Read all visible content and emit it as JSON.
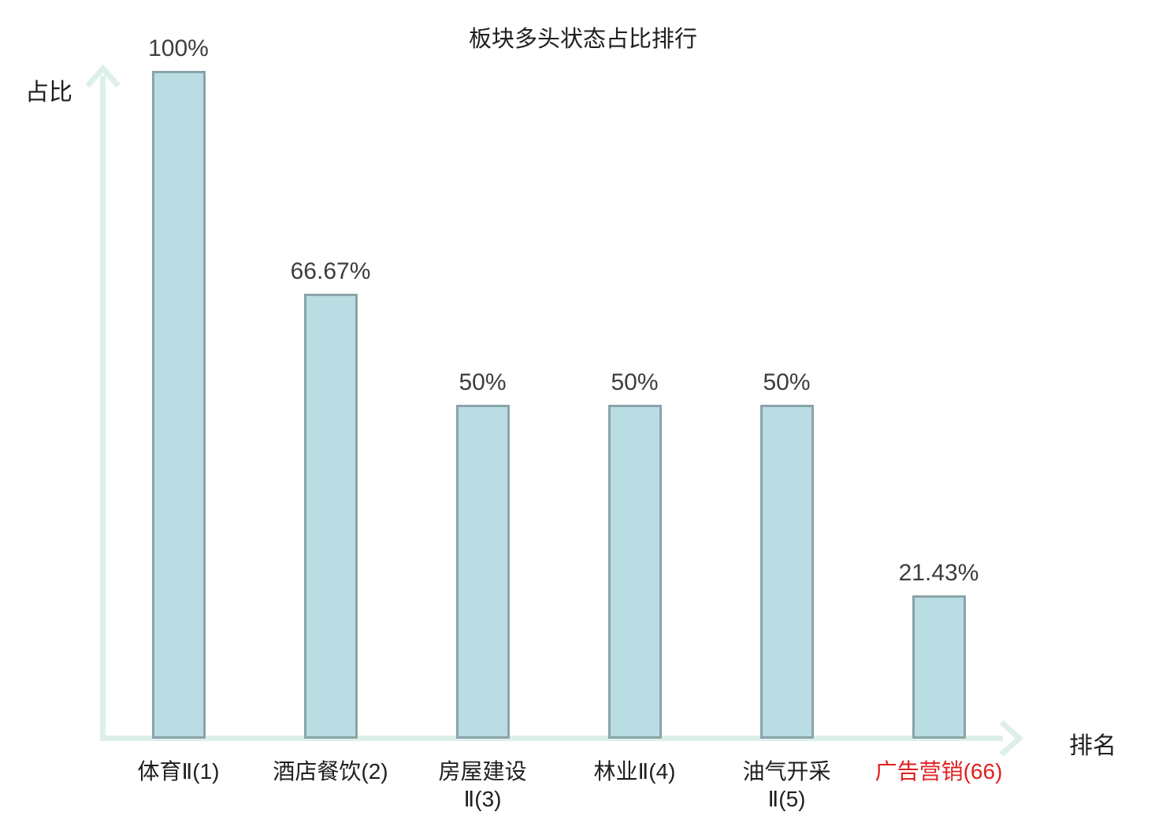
{
  "chart_data": {
    "type": "bar",
    "title": "板块多头状态占比排行",
    "xlabel": "排名",
    "ylabel": "占比",
    "categories": [
      "体育Ⅱ(1)",
      "酒店餐饮(2)",
      "房屋建设\nⅡ(3)",
      "林业Ⅱ(4)",
      "油气开采\nⅡ(5)",
      "广告营销(66)"
    ],
    "values": [
      100,
      66.67,
      50,
      50,
      50,
      21.43
    ],
    "value_labels": [
      "100%",
      "66.67%",
      "50%",
      "50%",
      "50%",
      "21.43%"
    ],
    "highlight_index": 5,
    "ylim": [
      0,
      100
    ],
    "grid": false,
    "legend": false
  },
  "colors": {
    "background": "#ffffff",
    "bar_fill": "#b9dde2",
    "bar_border": "#8aa4a9",
    "axis": "#ddefe9",
    "value_text": "#3d3d3d",
    "category_text": "#1f1f1f",
    "title_text": "#1f1f1f",
    "highlight_text": "#e02020"
  }
}
